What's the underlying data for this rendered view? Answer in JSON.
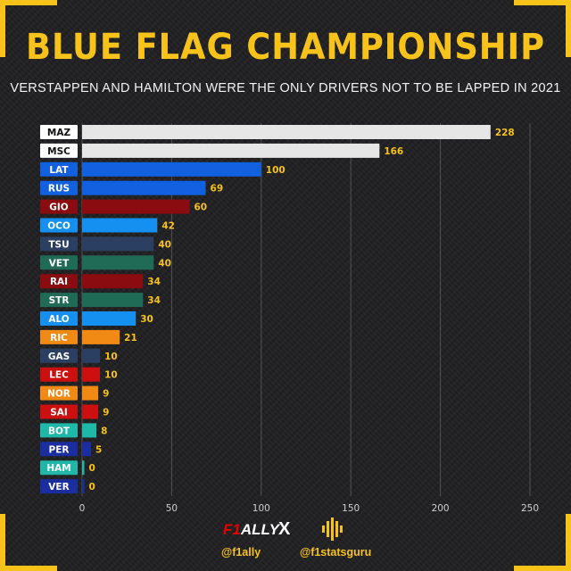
{
  "header": {
    "title": "BLUE FLAG CHAMPIONSHIP",
    "subtitle": "VERSTAPPEN AND HAMILTON WERE THE ONLY DRIVERS NOT TO BE LAPPED IN 2021"
  },
  "chart_data": {
    "type": "bar",
    "orientation": "horizontal",
    "categories": [
      "MAZ",
      "MSC",
      "LAT",
      "RUS",
      "GIO",
      "OCO",
      "TSU",
      "VET",
      "RAI",
      "STR",
      "ALO",
      "RIC",
      "GAS",
      "LEC",
      "NOR",
      "SAI",
      "BOT",
      "PER",
      "HAM",
      "VER"
    ],
    "values": [
      228,
      166,
      100,
      69,
      60,
      42,
      40,
      40,
      34,
      34,
      30,
      21,
      10,
      10,
      9,
      9,
      8,
      5,
      0,
      0
    ],
    "colors": [
      "#e6e6e6",
      "#e6e6e6",
      "#1060e0",
      "#1060e0",
      "#8a0b10",
      "#1590f0",
      "#2b3f63",
      "#1f6b55",
      "#8a0b10",
      "#1f6b55",
      "#1590f0",
      "#f08a14",
      "#2b3f63",
      "#cc1010",
      "#f08a14",
      "#cc1010",
      "#1fb8a8",
      "#1a2ea0",
      "#1fb8a8",
      "#1a2ea0"
    ],
    "label_colors": [
      "#ffffff",
      "#ffffff",
      "#1060e0",
      "#1060e0",
      "#8a0b10",
      "#1590f0",
      "#2b3f63",
      "#1f6b55",
      "#8a0b10",
      "#1f6b55",
      "#1590f0",
      "#f08a14",
      "#2b3f63",
      "#cc1010",
      "#f08a14",
      "#cc1010",
      "#1fb8a8",
      "#1a2ea0",
      "#1fb8a8",
      "#1a2ea0"
    ],
    "xlim": [
      0,
      250
    ],
    "xticks": [
      0,
      50,
      100,
      150,
      200,
      250
    ],
    "grid": true,
    "value_label_color": "#f7c21a"
  },
  "footer": {
    "logo_left": "F1ALLY",
    "separator": "X",
    "handle_left": "@f1ally",
    "handle_right": "@f1statsguru"
  },
  "colors": {
    "accent": "#f7c21a",
    "background": "#1f1f21"
  }
}
